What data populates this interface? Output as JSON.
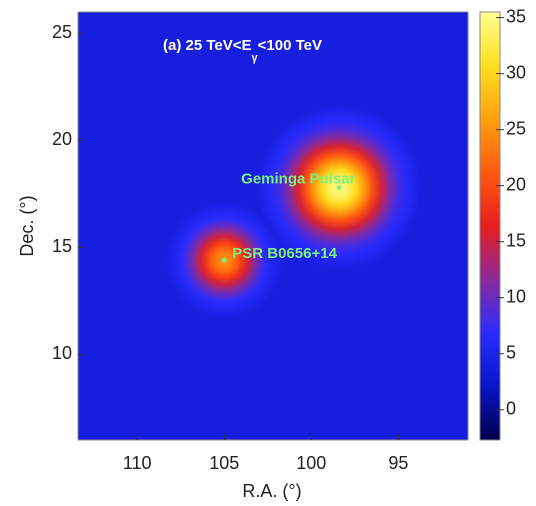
{
  "chart_data": {
    "type": "heatmap",
    "title": "(a)  25 TeV<E",
    "title_sub": "γ",
    "title_end": "<100 TeV",
    "xlabel": "R.A. (°)",
    "ylabel": "Dec. (°)",
    "xlim": [
      113.4,
      91
    ],
    "xticks": [
      110,
      105,
      100,
      95
    ],
    "ylim": [
      6,
      26
    ],
    "yticks": [
      10,
      15,
      20,
      25
    ],
    "clim": [
      -2.7,
      35.5
    ],
    "cticks": [
      0,
      5,
      10,
      15,
      20,
      25,
      30,
      35
    ],
    "colormap": [
      "#00004a",
      "#0a14c8",
      "#2a2cff",
      "#8a2a9a",
      "#e81e1e",
      "#ff5a10",
      "#ffa010",
      "#ffe020",
      "#ffff90"
    ],
    "background": 4,
    "sources": [
      {
        "name": "Geminga Pulsar",
        "x": 98.4,
        "y": 17.8,
        "value": 35
      },
      {
        "name": "PSR B0656+14",
        "x": 105,
        "y": 14.4,
        "value": 25
      }
    ]
  }
}
